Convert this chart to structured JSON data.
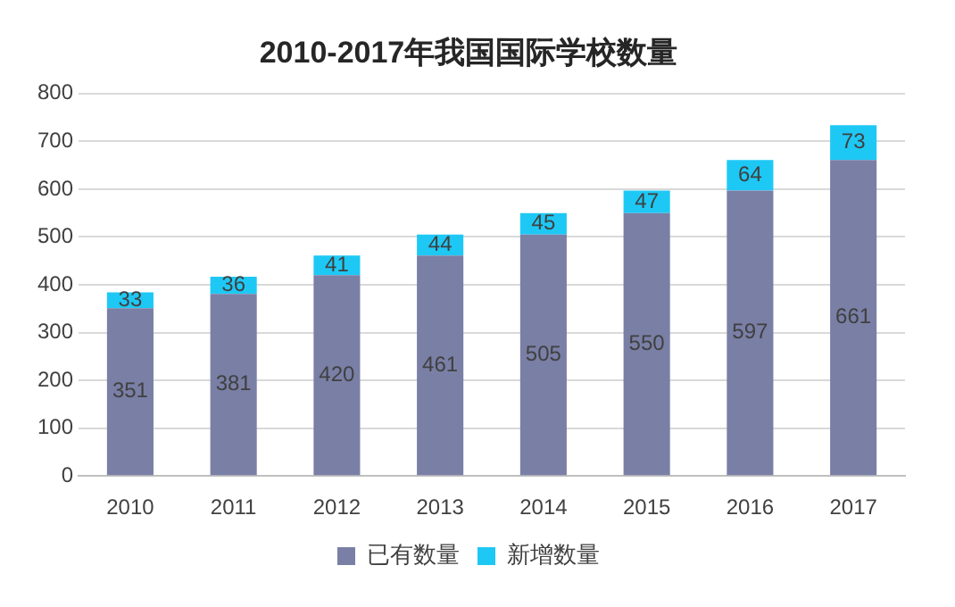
{
  "chart_data": {
    "type": "bar",
    "title": "2010-2017年我国国际学校数量",
    "categories": [
      "2010",
      "2011",
      "2012",
      "2013",
      "2014",
      "2015",
      "2016",
      "2017"
    ],
    "series": [
      {
        "name": "已有数量",
        "color": "#7a7fa6",
        "values": [
          351,
          381,
          420,
          461,
          505,
          550,
          597,
          661
        ]
      },
      {
        "name": "新增数量",
        "color": "#1ec8f5",
        "values": [
          33,
          36,
          41,
          44,
          45,
          47,
          64,
          73
        ]
      }
    ],
    "stacked": true,
    "ylim": [
      0,
      800
    ],
    "yticks": [
      0,
      100,
      200,
      300,
      400,
      500,
      600,
      700,
      800
    ],
    "grid": "y",
    "legend": "bottom",
    "data_labels": true
  }
}
